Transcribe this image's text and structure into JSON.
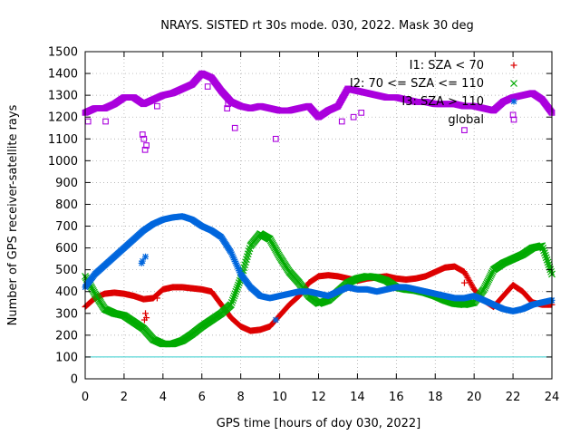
{
  "chart_data": {
    "type": "scatter",
    "title": "NRAYS. SISTED rt 30s mode. 030, 2022. Mask 30 deg",
    "xlabel": "GPS time [hours of doy 030, 2022]",
    "ylabel": "Number of GPS receiver-satellite rays",
    "xlim": [
      0,
      24
    ],
    "ylim": [
      0,
      1500
    ],
    "xticks": [
      "0",
      "2",
      "4",
      "6",
      "8",
      "10",
      "12",
      "14",
      "16",
      "18",
      "20",
      "22",
      "24"
    ],
    "yticks": [
      "0",
      "100",
      "200",
      "300",
      "400",
      "500",
      "600",
      "700",
      "800",
      "900",
      "1000",
      "1100",
      "1200",
      "1300",
      "1400",
      "1500"
    ],
    "reference_line": {
      "y": 100,
      "color": "#33cccc"
    },
    "series": [
      {
        "name": "I1: SZA < 70",
        "color": "#dd0000",
        "marker": "plus",
        "x": [
          0,
          0.5,
          1,
          1.5,
          2,
          2.5,
          3,
          3.5,
          4,
          4.5,
          5,
          5.5,
          6,
          6.5,
          7,
          7.5,
          8,
          8.5,
          9,
          9.5,
          10,
          10.5,
          11,
          11.5,
          12,
          12.5,
          13,
          13.5,
          14,
          14.5,
          15,
          15.5,
          16,
          16.5,
          17,
          17.5,
          18,
          18.5,
          19,
          19.5,
          20,
          20.5,
          21,
          21.5,
          22,
          22.5,
          23,
          23.5,
          24
        ],
        "values": [
          330,
          370,
          390,
          395,
          390,
          380,
          365,
          370,
          410,
          420,
          420,
          415,
          410,
          400,
          340,
          280,
          240,
          220,
          225,
          240,
          290,
          340,
          380,
          440,
          470,
          475,
          470,
          460,
          450,
          460,
          465,
          470,
          460,
          455,
          460,
          470,
          490,
          510,
          515,
          490,
          410,
          360,
          330,
          380,
          430,
          400,
          350,
          340,
          340
        ]
      },
      {
        "name": "I2: 70 <= SZA <= 110",
        "color": "#00aa00",
        "marker": "cross",
        "x": [
          0,
          0.5,
          1,
          1.5,
          2,
          2.5,
          3,
          3.5,
          4,
          4.5,
          5,
          5.5,
          6,
          6.5,
          7,
          7.5,
          8,
          8.5,
          9,
          9.5,
          10,
          10.5,
          11,
          11.5,
          12,
          12.5,
          13,
          13.5,
          14,
          14.5,
          15,
          15.5,
          16,
          16.5,
          17,
          17.5,
          18,
          18.5,
          19,
          19.5,
          20,
          20.5,
          21,
          21.5,
          22,
          22.5,
          23,
          23.5,
          24
        ],
        "values": [
          470,
          390,
          320,
          300,
          290,
          260,
          230,
          180,
          160,
          160,
          175,
          205,
          240,
          270,
          300,
          340,
          460,
          610,
          665,
          640,
          560,
          490,
          440,
          380,
          345,
          360,
          400,
          440,
          460,
          470,
          465,
          450,
          420,
          410,
          405,
          395,
          380,
          360,
          345,
          340,
          350,
          410,
          500,
          530,
          550,
          570,
          600,
          610,
          480
        ]
      },
      {
        "name": "I3: SZA > 110",
        "color": "#0066dd",
        "marker": "star",
        "x": [
          0,
          0.5,
          1,
          1.5,
          2,
          2.5,
          3,
          3.5,
          4,
          4.5,
          5,
          5.5,
          6,
          6.5,
          7,
          7.5,
          8,
          8.5,
          9,
          9.5,
          10,
          10.5,
          11,
          11.5,
          12,
          12.5,
          13,
          13.5,
          14,
          14.5,
          15,
          15.5,
          16,
          16.5,
          17,
          17.5,
          18,
          18.5,
          19,
          19.5,
          20,
          20.5,
          21,
          21.5,
          22,
          22.5,
          23,
          23.5,
          24
        ],
        "values": [
          420,
          480,
          520,
          560,
          600,
          640,
          680,
          710,
          730,
          740,
          745,
          730,
          700,
          680,
          650,
          580,
          480,
          420,
          380,
          370,
          380,
          390,
          400,
          400,
          390,
          380,
          400,
          420,
          410,
          410,
          400,
          410,
          420,
          420,
          410,
          400,
          390,
          380,
          370,
          370,
          380,
          360,
          340,
          320,
          310,
          320,
          340,
          350,
          360
        ]
      },
      {
        "name": "global",
        "color": "#aa00dd",
        "marker": "square",
        "x": [
          0,
          0.5,
          1,
          1.5,
          2,
          2.5,
          3,
          3.5,
          4,
          4.5,
          5,
          5.5,
          6,
          6.5,
          7,
          7.5,
          8,
          8.5,
          9,
          9.5,
          10,
          10.5,
          11,
          11.5,
          12,
          12.5,
          13,
          13.5,
          14,
          14.5,
          15,
          15.5,
          16,
          16.5,
          17,
          17.5,
          18,
          18.5,
          19,
          19.5,
          20,
          20.5,
          21,
          21.5,
          22,
          22.5,
          23,
          23.5,
          24
        ],
        "values": [
          1220,
          1240,
          1240,
          1260,
          1290,
          1290,
          1260,
          1280,
          1300,
          1310,
          1330,
          1350,
          1400,
          1380,
          1320,
          1270,
          1250,
          1240,
          1250,
          1240,
          1230,
          1230,
          1240,
          1250,
          1200,
          1230,
          1250,
          1330,
          1320,
          1310,
          1300,
          1290,
          1290,
          1280,
          1270,
          1270,
          1260,
          1260,
          1260,
          1250,
          1250,
          1240,
          1230,
          1270,
          1290,
          1300,
          1310,
          1280,
          1220
        ]
      }
    ],
    "outliers": {
      "global": {
        "x": [
          0.15,
          1.05,
          2.95,
          3.02,
          3.08,
          3.15,
          3.7,
          6.3,
          7.3,
          7.35,
          7.7,
          9.8,
          13.2,
          13.8,
          14.2,
          19.5,
          22.0
        ],
        "values": [
          1180,
          1180,
          1120,
          1100,
          1050,
          1070,
          1250,
          1340,
          1240,
          1260,
          1150,
          1100,
          1180,
          1200,
          1220,
          1140,
          1210
        ]
      },
      "I1: SZA < 70": {
        "x": [
          3.05,
          3.1,
          3.15,
          3.7,
          19.5
        ],
        "values": [
          270,
          300,
          280,
          370,
          440
        ]
      },
      "I3: SZA > 110": {
        "x": [
          2.9,
          2.95,
          3.1,
          9.8
        ],
        "values": [
          530,
          540,
          560,
          270
        ]
      }
    }
  }
}
